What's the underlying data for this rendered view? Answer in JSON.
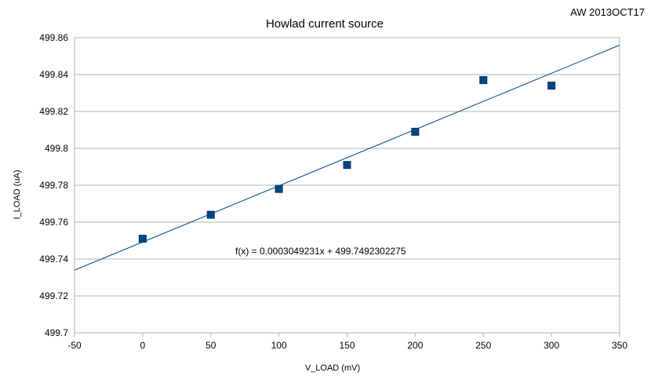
{
  "corner_note": "AW 2013OCT17",
  "chart_data": {
    "type": "scatter",
    "title": "Howlad current source",
    "xlabel": "V_LOAD  (mV)",
    "ylabel": "I_LOAD (uA)",
    "xlim": [
      -50,
      350
    ],
    "ylim": [
      499.7,
      499.86
    ],
    "x_ticks": [
      -50,
      0,
      50,
      100,
      150,
      200,
      250,
      300,
      350
    ],
    "y_ticks": [
      499.7,
      499.72,
      499.74,
      499.76,
      499.78,
      499.8,
      499.82,
      499.84,
      499.86
    ],
    "x_tick_labels": [
      "-50",
      "0",
      "50",
      "100",
      "150",
      "200",
      "250",
      "300",
      "350"
    ],
    "y_tick_labels": [
      "499.7",
      "499.72",
      "499.74",
      "499.76",
      "499.78",
      "499.8",
      "499.82",
      "499.84",
      "499.86"
    ],
    "grid": "horizontal",
    "legend": "none",
    "marker_color": "#004586",
    "series": [
      {
        "points": [
          {
            "x": 0,
            "y": 499.751
          },
          {
            "x": 50,
            "y": 499.764
          },
          {
            "x": 100,
            "y": 499.778
          },
          {
            "x": 150,
            "y": 499.791
          },
          {
            "x": 200,
            "y": 499.809
          },
          {
            "x": 250,
            "y": 499.837
          },
          {
            "x": 300,
            "y": 499.834
          }
        ]
      }
    ],
    "trendline": {
      "slope": 0.0003049231,
      "intercept": 499.7492302275,
      "color": "#004586",
      "label": "f(x) = 0.0003049231x + 499.7492302275"
    }
  }
}
